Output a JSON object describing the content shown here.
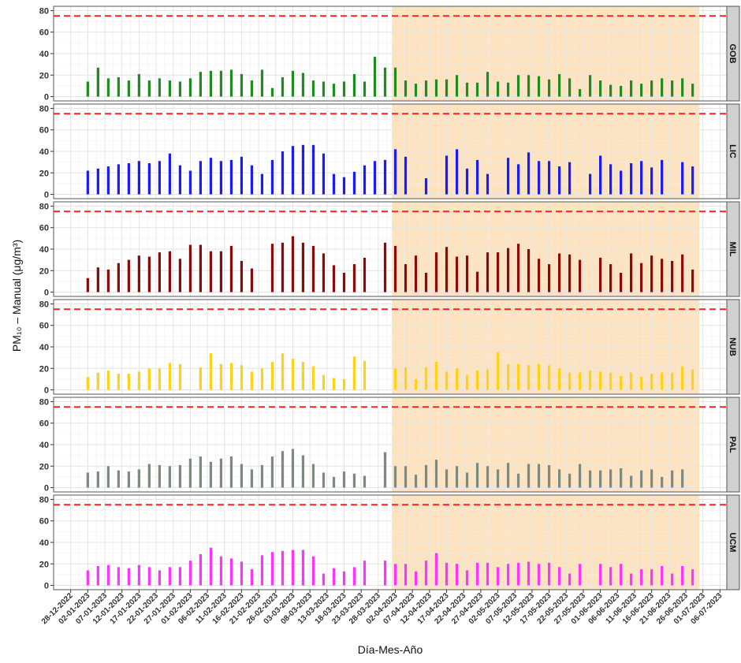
{
  "chart_data": {
    "type": "bar",
    "xlabel": "Día-Mes-Año",
    "ylabel": "PM₁₀ – Manual (μg/m³)",
    "x": [
      "02-01-2023",
      "05-01-2023",
      "08-01-2023",
      "11-01-2023",
      "14-01-2023",
      "17-01-2023",
      "20-01-2023",
      "23-01-2023",
      "26-01-2023",
      "29-01-2023",
      "01-02-2023",
      "04-02-2023",
      "07-02-2023",
      "10-02-2023",
      "13-02-2023",
      "16-02-2023",
      "19-02-2023",
      "22-02-2023",
      "25-02-2023",
      "28-02-2023",
      "03-03-2023",
      "06-03-2023",
      "09-03-2023",
      "12-03-2023",
      "15-03-2023",
      "18-03-2023",
      "21-03-2023",
      "24-03-2023",
      "27-03-2023",
      "30-03-2023",
      "02-04-2023",
      "05-04-2023",
      "08-04-2023",
      "11-04-2023",
      "14-04-2023",
      "17-04-2023",
      "20-04-2023",
      "23-04-2023",
      "26-04-2023",
      "29-04-2023",
      "02-05-2023",
      "05-05-2023",
      "08-05-2023",
      "11-05-2023",
      "14-05-2023",
      "17-05-2023",
      "20-05-2023",
      "23-05-2023",
      "26-05-2023",
      "29-05-2023",
      "01-06-2023",
      "04-06-2023",
      "07-06-2023",
      "10-06-2023",
      "13-06-2023",
      "16-06-2023",
      "19-06-2023",
      "22-06-2023",
      "25-06-2023",
      "28-06-2023"
    ],
    "xlim": [
      "23-12-2022",
      "08-07-2023"
    ],
    "xticks": [
      "28-12-2022",
      "02-01-2023",
      "07-01-2023",
      "12-01-2023",
      "17-01-2023",
      "22-01-2023",
      "27-01-2023",
      "01-02-2023",
      "06-02-2023",
      "11-02-2023",
      "16-02-2023",
      "21-02-2023",
      "26-02-2023",
      "03-03-2023",
      "08-03-2023",
      "13-03-2023",
      "18-03-2023",
      "23-03-2023",
      "28-03-2023",
      "02-04-2023",
      "07-04-2023",
      "12-04-2023",
      "17-04-2023",
      "22-04-2023",
      "27-04-2023",
      "02-05-2023",
      "07-05-2023",
      "12-05-2023",
      "17-05-2023",
      "22-05-2023",
      "27-05-2023",
      "01-06-2023",
      "06-06-2023",
      "11-06-2023",
      "16-06-2023",
      "21-06-2023",
      "26-06-2023",
      "01-07-2023",
      "06-07-2023"
    ],
    "ylim": [
      -4,
      84
    ],
    "yticks": [
      0,
      20,
      40,
      60,
      80
    ],
    "grid": true,
    "reference_line": {
      "value": 75,
      "color": "#ff2020"
    },
    "highlight": {
      "from": "01-04-2023",
      "to": "30-06-2023",
      "color": "#fde3bf"
    },
    "series": [
      {
        "name": "GOB",
        "color": "#1f8c1f",
        "values": [
          14,
          27,
          17,
          18,
          15,
          21,
          15,
          17,
          15,
          14,
          17,
          23,
          24,
          24,
          25,
          21,
          15,
          25,
          8,
          18,
          24,
          22,
          15,
          14,
          12,
          14,
          21,
          14,
          37,
          27,
          27,
          15,
          12,
          15,
          16,
          16,
          20,
          13,
          13,
          23,
          14,
          13,
          20,
          20,
          19,
          16,
          21,
          17,
          7,
          20,
          15,
          11,
          10,
          15,
          12,
          15,
          17,
          15,
          17,
          12
        ]
      },
      {
        "name": "LIC",
        "color": "#1a1aff",
        "values": [
          22,
          24,
          26,
          28,
          29,
          31,
          29,
          31,
          38,
          27,
          22,
          31,
          34,
          31,
          32,
          35,
          27,
          19,
          32,
          40,
          45,
          46,
          46,
          38,
          19,
          16,
          21,
          27,
          31,
          32,
          42,
          35,
          null,
          15,
          null,
          36,
          42,
          24,
          32,
          19,
          null,
          34,
          28,
          39,
          31,
          31,
          26,
          30,
          null,
          19,
          36,
          28,
          22,
          29,
          31,
          25,
          32,
          null,
          30,
          26
        ]
      },
      {
        "name": "MIL",
        "color": "#8b0a0a",
        "values": [
          13,
          23,
          21,
          27,
          30,
          34,
          33,
          37,
          38,
          31,
          44,
          44,
          38,
          38,
          43,
          29,
          22,
          null,
          45,
          46,
          52,
          46,
          43,
          36,
          25,
          18,
          26,
          32,
          null,
          46,
          43,
          26,
          34,
          18,
          37,
          42,
          33,
          34,
          19,
          37,
          37,
          41,
          45,
          40,
          31,
          26,
          36,
          35,
          30,
          null,
          32,
          26,
          18,
          36,
          27,
          34,
          31,
          29,
          35,
          21
        ]
      },
      {
        "name": "NUB",
        "color": "#ffd21a",
        "values": [
          12,
          16,
          18,
          15,
          15,
          17,
          20,
          20,
          25,
          24,
          null,
          21,
          34,
          24,
          25,
          23,
          17,
          20,
          26,
          34,
          29,
          26,
          22,
          14,
          11,
          10,
          31,
          27,
          null,
          null,
          20,
          21,
          10,
          21,
          26,
          17,
          20,
          14,
          18,
          19,
          35,
          24,
          24,
          23,
          24,
          23,
          20,
          16,
          16,
          18,
          17,
          16,
          13,
          16,
          12,
          15,
          16,
          16,
          22,
          19
        ]
      },
      {
        "name": "PAL",
        "color": "#7f8a7f",
        "values": [
          14,
          15,
          20,
          16,
          15,
          17,
          22,
          21,
          20,
          21,
          27,
          29,
          24,
          27,
          29,
          22,
          17,
          21,
          29,
          34,
          36,
          30,
          22,
          14,
          10,
          15,
          13,
          11,
          null,
          33,
          20,
          20,
          12,
          21,
          26,
          17,
          20,
          14,
          23,
          20,
          17,
          23,
          13,
          22,
          22,
          21,
          17,
          13,
          22,
          16,
          16,
          17,
          18,
          11,
          16,
          17,
          10,
          16,
          17,
          null
        ]
      },
      {
        "name": "UCM",
        "color": "#ff33ff",
        "values": [
          14,
          18,
          19,
          17,
          16,
          19,
          17,
          14,
          17,
          17,
          23,
          29,
          35,
          27,
          25,
          22,
          15,
          28,
          31,
          32,
          33,
          33,
          27,
          11,
          16,
          13,
          17,
          23,
          null,
          23,
          20,
          20,
          13,
          23,
          30,
          21,
          20,
          14,
          21,
          21,
          17,
          20,
          21,
          22,
          20,
          21,
          17,
          11,
          20,
          null,
          20,
          17,
          20,
          11,
          15,
          15,
          18,
          11,
          18,
          15
        ]
      }
    ]
  }
}
